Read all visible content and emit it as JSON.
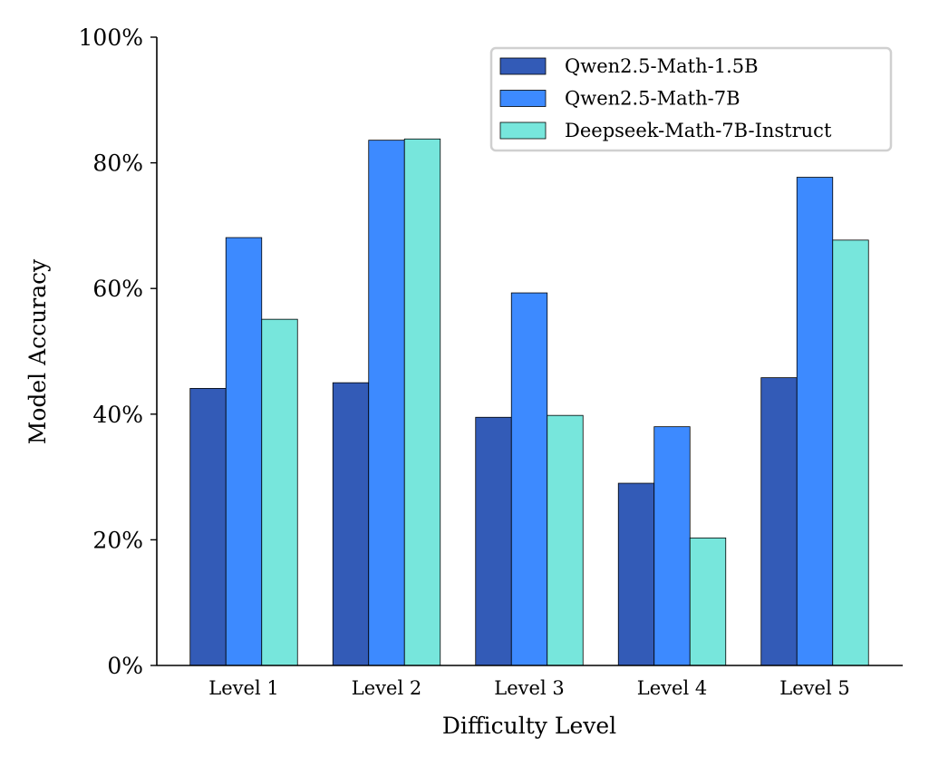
{
  "chart_data": {
    "type": "bar",
    "title": "",
    "xlabel": "Difficulty Level",
    "ylabel": "Model Accuracy",
    "categories": [
      "Level 1",
      "Level 2",
      "Level 3",
      "Level 4",
      "Level 5"
    ],
    "ylim": [
      0,
      100
    ],
    "yticks": [
      0,
      20,
      40,
      60,
      80,
      100
    ],
    "ytick_labels": [
      "0%",
      "20%",
      "40%",
      "60%",
      "80%",
      "100%"
    ],
    "grid": false,
    "legend_position": "top-right",
    "series": [
      {
        "name": "Qwen2.5-Math-1.5B",
        "color": "#335BB7",
        "values": [
          44.1,
          45.0,
          39.5,
          29.0,
          45.8
        ]
      },
      {
        "name": "Qwen2.5-Math-7B",
        "color": "#3D8AFF",
        "values": [
          68.1,
          83.6,
          59.3,
          38.0,
          77.7
        ]
      },
      {
        "name": "Deepseek-Math-7B-Instruct",
        "color": "#77E6DC",
        "values": [
          55.1,
          83.8,
          39.8,
          20.3,
          67.7
        ]
      }
    ]
  }
}
